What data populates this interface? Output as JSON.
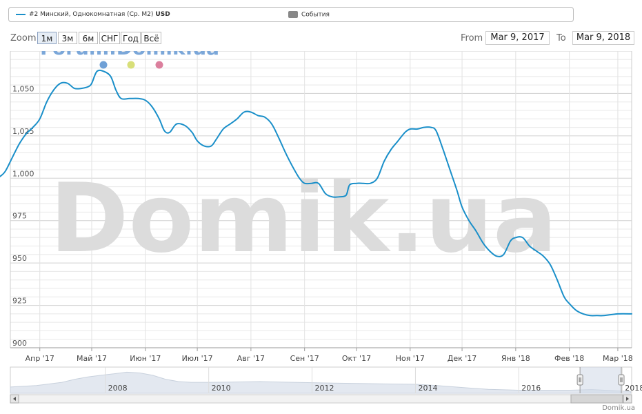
{
  "legend": {
    "series_label": "#2 Минский, Однокомнатная (Ср. М2)",
    "unit": "USD",
    "series_color": "#1a8fc9",
    "events_label": "События",
    "events_color": "#888888"
  },
  "range_selector": {
    "zoom_label": "Zoom",
    "buttons": [
      "1м",
      "3м",
      "6м",
      "СНГ",
      "Год",
      "Всё"
    ],
    "from_label": "From",
    "from_value": "Mar 9, 2017",
    "to_label": "To",
    "to_value": "Mar 9, 2018"
  },
  "watermarks": {
    "forum": "Forum.Domik.ua",
    "main": "Domik.ua"
  },
  "marker_dots": [
    "#6fa0d6",
    "#d8df79",
    "#db7f9d"
  ],
  "credit": "Domik.ua",
  "chart_data": {
    "type": "line",
    "title": "",
    "xlabel": "",
    "ylabel": "",
    "ylim": [
      900,
      1075
    ],
    "y_ticks": [
      {
        "value": 1050,
        "label": "1,050"
      },
      {
        "value": 1025,
        "label": "1,025"
      },
      {
        "value": 1000,
        "label": "1,000"
      },
      {
        "value": 975,
        "label": "975"
      },
      {
        "value": 950,
        "label": "950"
      },
      {
        "value": 925,
        "label": "925"
      },
      {
        "value": 900,
        "label": "900"
      }
    ],
    "x_range": [
      "2017-03-09",
      "2018-03-09"
    ],
    "x_ticks": [
      {
        "date": "2017-04-01",
        "label": "Апр '17"
      },
      {
        "date": "2017-05-01",
        "label": "Май '17"
      },
      {
        "date": "2017-06-01",
        "label": "Июн '17"
      },
      {
        "date": "2017-07-01",
        "label": "Июл '17"
      },
      {
        "date": "2017-08-01",
        "label": "Авг '17"
      },
      {
        "date": "2017-09-01",
        "label": "Сен '17"
      },
      {
        "date": "2017-10-01",
        "label": "Окт '17"
      },
      {
        "date": "2017-11-01",
        "label": "Ноя '17"
      },
      {
        "date": "2017-12-01",
        "label": "Дек '17"
      },
      {
        "date": "2018-01-01",
        "label": "Янв '18"
      },
      {
        "date": "2018-02-01",
        "label": "Фев '18"
      },
      {
        "date": "2018-03-01",
        "label": "Мар '18"
      }
    ],
    "grid": true,
    "legend_position": "top",
    "series": [
      {
        "name": "#2 Минский, Однокомнатная (Ср. М2)",
        "color": "#1a8fc9",
        "points": [
          [
            "2017-03-09",
            1001
          ],
          [
            "2017-03-12",
            1004
          ],
          [
            "2017-03-16",
            1012
          ],
          [
            "2017-03-20",
            1020
          ],
          [
            "2017-03-24",
            1026
          ],
          [
            "2017-03-28",
            1030
          ],
          [
            "2017-04-01",
            1035
          ],
          [
            "2017-04-05",
            1045
          ],
          [
            "2017-04-09",
            1052
          ],
          [
            "2017-04-13",
            1056
          ],
          [
            "2017-04-17",
            1056
          ],
          [
            "2017-04-21",
            1053
          ],
          [
            "2017-04-25",
            1053
          ],
          [
            "2017-04-29",
            1054
          ],
          [
            "2017-05-01",
            1056
          ],
          [
            "2017-05-04",
            1063
          ],
          [
            "2017-05-08",
            1063
          ],
          [
            "2017-05-12",
            1060
          ],
          [
            "2017-05-15",
            1052
          ],
          [
            "2017-05-18",
            1047
          ],
          [
            "2017-05-23",
            1047
          ],
          [
            "2017-05-28",
            1047
          ],
          [
            "2017-06-01",
            1046
          ],
          [
            "2017-06-05",
            1042
          ],
          [
            "2017-06-09",
            1035
          ],
          [
            "2017-06-12",
            1028
          ],
          [
            "2017-06-15",
            1027
          ],
          [
            "2017-06-19",
            1032
          ],
          [
            "2017-06-24",
            1031
          ],
          [
            "2017-06-28",
            1027
          ],
          [
            "2017-07-01",
            1022
          ],
          [
            "2017-07-05",
            1019
          ],
          [
            "2017-07-09",
            1019
          ],
          [
            "2017-07-12",
            1023
          ],
          [
            "2017-07-16",
            1029
          ],
          [
            "2017-07-20",
            1032
          ],
          [
            "2017-07-24",
            1035
          ],
          [
            "2017-07-28",
            1039
          ],
          [
            "2017-08-01",
            1039
          ],
          [
            "2017-08-05",
            1037
          ],
          [
            "2017-08-09",
            1036
          ],
          [
            "2017-08-13",
            1032
          ],
          [
            "2017-08-17",
            1024
          ],
          [
            "2017-08-21",
            1015
          ],
          [
            "2017-08-25",
            1007
          ],
          [
            "2017-08-29",
            1000
          ],
          [
            "2017-09-01",
            997
          ],
          [
            "2017-09-05",
            997
          ],
          [
            "2017-09-09",
            997
          ],
          [
            "2017-09-13",
            991
          ],
          [
            "2017-09-17",
            989
          ],
          [
            "2017-09-21",
            989
          ],
          [
            "2017-09-25",
            990
          ],
          [
            "2017-09-27",
            996
          ],
          [
            "2017-10-01",
            997
          ],
          [
            "2017-10-05",
            997
          ],
          [
            "2017-10-09",
            997
          ],
          [
            "2017-10-13",
            1000
          ],
          [
            "2017-10-17",
            1010
          ],
          [
            "2017-10-21",
            1017
          ],
          [
            "2017-10-25",
            1022
          ],
          [
            "2017-10-29",
            1027
          ],
          [
            "2017-11-01",
            1029
          ],
          [
            "2017-11-05",
            1029
          ],
          [
            "2017-11-09",
            1030
          ],
          [
            "2017-11-13",
            1030
          ],
          [
            "2017-11-16",
            1028
          ],
          [
            "2017-11-20",
            1017
          ],
          [
            "2017-11-24",
            1005
          ],
          [
            "2017-11-28",
            993
          ],
          [
            "2017-12-01",
            983
          ],
          [
            "2017-12-05",
            975
          ],
          [
            "2017-12-09",
            969
          ],
          [
            "2017-12-13",
            962
          ],
          [
            "2017-12-17",
            957
          ],
          [
            "2017-12-21",
            954
          ],
          [
            "2017-12-25",
            955
          ],
          [
            "2017-12-29",
            963
          ],
          [
            "2018-01-01",
            965
          ],
          [
            "2018-01-05",
            965
          ],
          [
            "2018-01-09",
            960
          ],
          [
            "2018-01-13",
            957
          ],
          [
            "2018-01-17",
            954
          ],
          [
            "2018-01-21",
            949
          ],
          [
            "2018-01-25",
            940
          ],
          [
            "2018-01-29",
            930
          ],
          [
            "2018-02-01",
            926
          ],
          [
            "2018-02-05",
            922
          ],
          [
            "2018-02-09",
            920
          ],
          [
            "2018-02-13",
            919
          ],
          [
            "2018-02-17",
            919
          ],
          [
            "2018-02-21",
            919
          ],
          [
            "2018-03-01",
            920
          ],
          [
            "2018-03-09",
            920
          ]
        ]
      }
    ],
    "navigator": {
      "x_range": [
        "2006-03-01",
        "2018-03-09"
      ],
      "tick_labels": [
        {
          "date": "2008-01-01",
          "label": "2008"
        },
        {
          "date": "2010-01-01",
          "label": "2010"
        },
        {
          "date": "2012-01-01",
          "label": "2012"
        },
        {
          "date": "2014-01-01",
          "label": "2014"
        },
        {
          "date": "2016-01-01",
          "label": "2016"
        },
        {
          "date": "2018-01-01",
          "label": "2018"
        }
      ],
      "selected_range": [
        "2017-03-09",
        "2018-03-09"
      ],
      "overview": [
        [
          "2006-03-01",
          1200
        ],
        [
          "2006-09-01",
          1300
        ],
        [
          "2007-03-01",
          1500
        ],
        [
          "2007-06-01",
          1700
        ],
        [
          "2007-09-01",
          1850
        ],
        [
          "2007-12-01",
          1950
        ],
        [
          "2008-03-01",
          2050
        ],
        [
          "2008-06-01",
          2150
        ],
        [
          "2008-09-01",
          2100
        ],
        [
          "2008-12-01",
          1950
        ],
        [
          "2009-03-01",
          1700
        ],
        [
          "2009-06-01",
          1550
        ],
        [
          "2009-09-01",
          1500
        ],
        [
          "2010-01-01",
          1500
        ],
        [
          "2010-06-01",
          1520
        ],
        [
          "2011-01-01",
          1550
        ],
        [
          "2011-06-01",
          1520
        ],
        [
          "2012-01-01",
          1480
        ],
        [
          "2012-06-01",
          1450
        ],
        [
          "2013-01-01",
          1420
        ],
        [
          "2013-06-01",
          1400
        ],
        [
          "2014-01-01",
          1380
        ],
        [
          "2014-06-01",
          1300
        ],
        [
          "2015-01-01",
          1150
        ],
        [
          "2015-06-01",
          1050
        ],
        [
          "2016-01-01",
          1000
        ],
        [
          "2016-06-01",
          1000
        ],
        [
          "2017-01-01",
          1000
        ],
        [
          "2017-06-01",
          1040
        ],
        [
          "2018-03-01",
          920
        ]
      ]
    }
  }
}
